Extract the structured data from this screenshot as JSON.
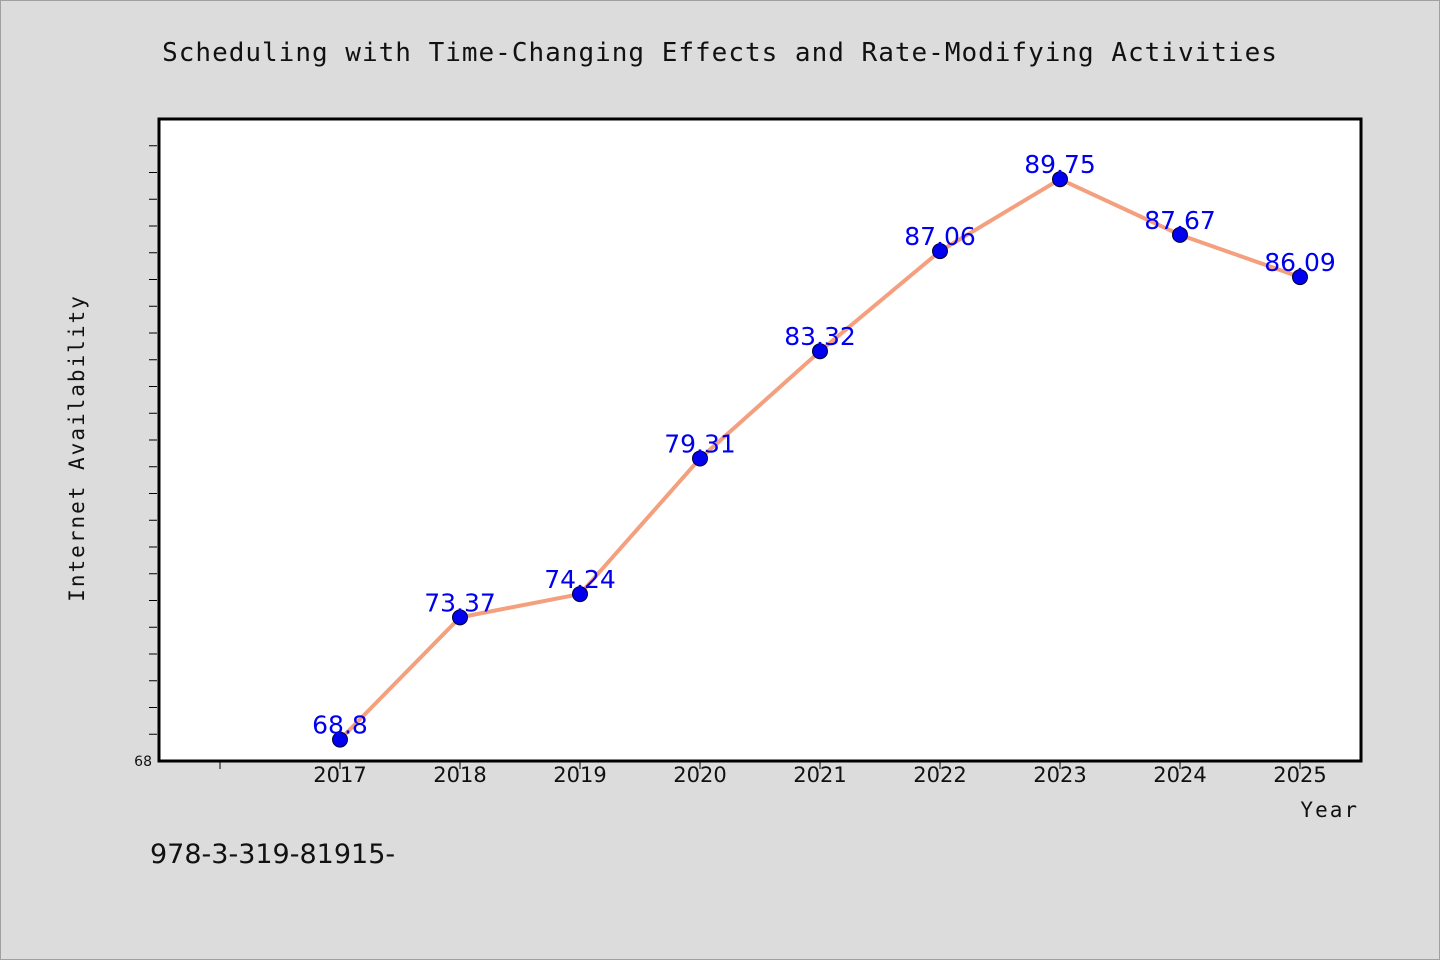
{
  "chart_data": {
    "type": "line",
    "title": "Scheduling with Time-Changing Effects and Rate-Modifying Activities",
    "xlabel": "Year",
    "ylabel": "Internet Availability",
    "categories": [
      "2017",
      "2018",
      "2019",
      "2020",
      "2021",
      "2022",
      "2023",
      "2024",
      "2025"
    ],
    "series": [
      {
        "values": [
          68.8,
          73.37,
          74.24,
          79.31,
          83.32,
          87.06,
          89.75,
          87.67,
          86.09
        ],
        "data_labels": [
          "68.8",
          "73.37",
          "74.24",
          "79.31",
          "83.32",
          "87.06",
          "89.75",
          "87.67",
          "86.09"
        ]
      }
    ],
    "ylim": [
      68,
      92
    ],
    "y_min_label": "68",
    "grid": false,
    "line_color": "#f4a07f",
    "marker_color": "#0000ee",
    "label_color": "#0000ee"
  },
  "footnote": "978-3-319-81915-"
}
